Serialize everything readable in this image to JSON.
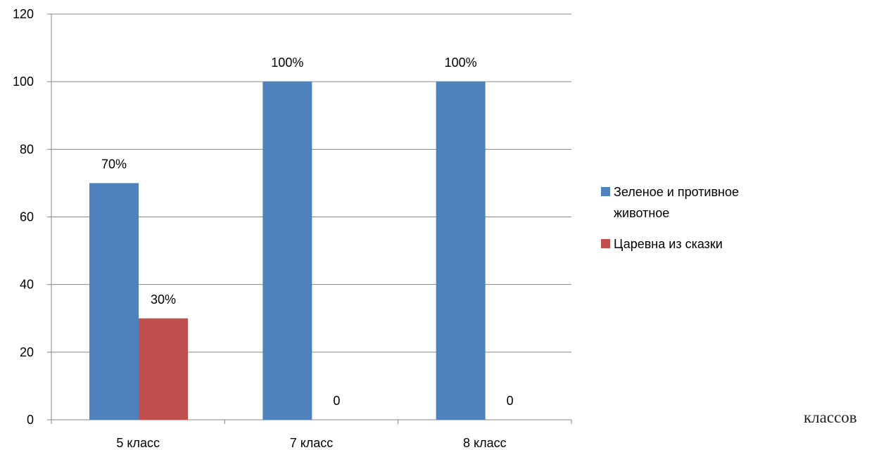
{
  "chart_data": {
    "type": "bar",
    "categories": [
      "5 класс",
      "7 класс",
      "8 класс"
    ],
    "series": [
      {
        "name": "Зеленое и противное животное",
        "values": [
          70,
          100,
          100
        ],
        "labels": [
          "70%",
          "100%",
          "100%"
        ],
        "color": "#4f81bd"
      },
      {
        "name": "Царевна из сказки",
        "values": [
          30,
          0,
          0
        ],
        "labels": [
          "30%",
          "0",
          "0"
        ],
        "color": "#c0504d"
      }
    ],
    "ylim": [
      0,
      120
    ],
    "yticks": [
      0,
      20,
      40,
      60,
      80,
      100,
      120
    ],
    "grid": true,
    "legend_position": "right"
  },
  "footer_text": "классов"
}
